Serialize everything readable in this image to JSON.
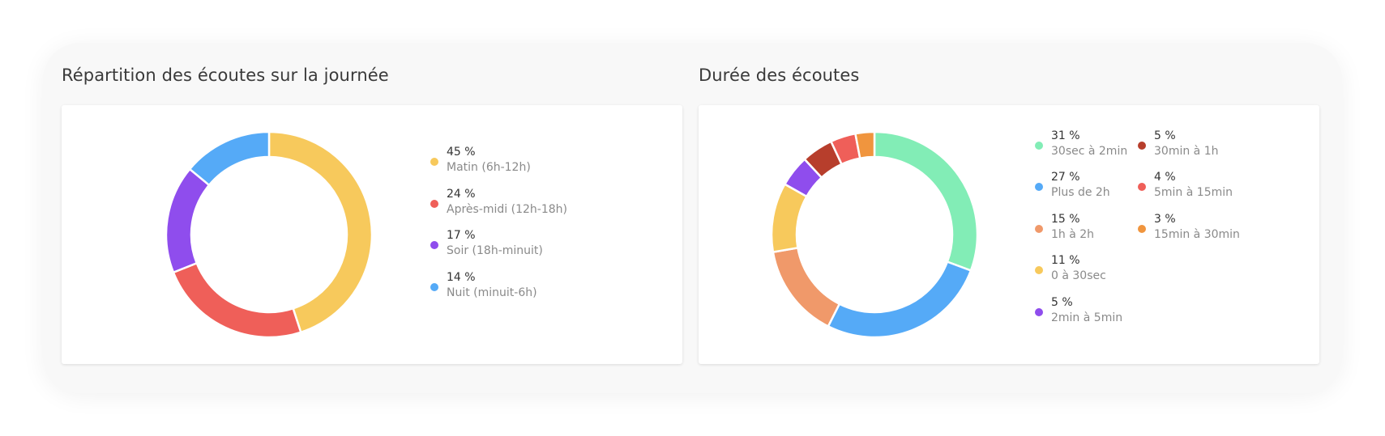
{
  "chart_data": [
    {
      "type": "pie",
      "title": "Répartition des écoutes sur la journée",
      "slices": [
        {
          "pct_label": "45 %",
          "label": "Matin (6h-12h)",
          "value": 45,
          "color": "#f7c95c"
        },
        {
          "pct_label": "24 %",
          "label": "Après-midi (12h-18h)",
          "value": 24,
          "color": "#ef5f59"
        },
        {
          "pct_label": "17 %",
          "label": "Soir (18h-minuit)",
          "value": 17,
          "color": "#8f4ded"
        },
        {
          "pct_label": "14 %",
          "label": "Nuit (minuit-6h)",
          "value": 14,
          "color": "#55aaf7"
        }
      ]
    },
    {
      "type": "pie",
      "title": "Durée des écoutes",
      "slices": [
        {
          "pct_label": "31 %",
          "label": "30sec à 2min",
          "value": 31,
          "color": "#82edb6"
        },
        {
          "pct_label": "27 %",
          "label": "Plus de 2h",
          "value": 27,
          "color": "#55aaf7"
        },
        {
          "pct_label": "15 %",
          "label": "1h à 2h",
          "value": 15,
          "color": "#f0996a"
        },
        {
          "pct_label": "11 %",
          "label": "0 à 30sec",
          "value": 11,
          "color": "#f7c95c"
        },
        {
          "pct_label": "5 %",
          "label": "2min à 5min",
          "value": 5,
          "color": "#8f4ded"
        },
        {
          "pct_label": "5 %",
          "label": "30min à 1h",
          "value": 5,
          "color": "#b73e2c"
        },
        {
          "pct_label": "4 %",
          "label": "5min à 15min",
          "value": 4,
          "color": "#ef5f59"
        },
        {
          "pct_label": "3 %",
          "label": "15min à 30min",
          "value": 3,
          "color": "#f0953e"
        }
      ]
    }
  ]
}
